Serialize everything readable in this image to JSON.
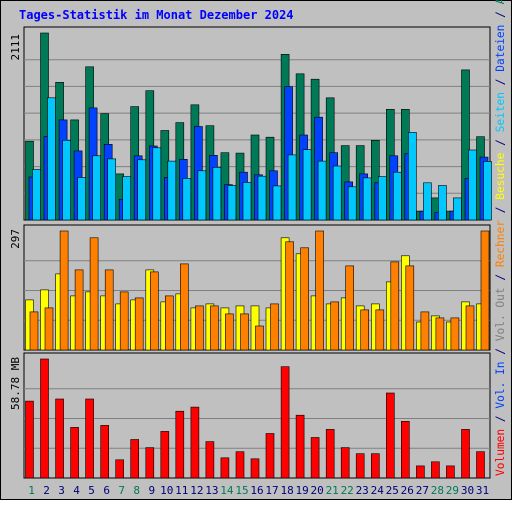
{
  "chart_data": [
    {
      "type": "bar",
      "panel": "top",
      "title": "Tages-Statistik im Monat Dezember 2024",
      "categories": [
        "1",
        "2",
        "3",
        "4",
        "5",
        "6",
        "7",
        "8",
        "9",
        "10",
        "11",
        "12",
        "13",
        "14",
        "15",
        "16",
        "17",
        "18",
        "19",
        "20",
        "21",
        "22",
        "23",
        "24",
        "25",
        "26",
        "27",
        "28",
        "29",
        "30",
        "31"
      ],
      "weekend_days": [
        "1",
        "7",
        "8",
        "14",
        "15",
        "21",
        "22",
        "28",
        "29"
      ],
      "ymax_label": "2111",
      "ylim": [
        0,
        2111
      ],
      "series": [
        {
          "name": "Anfragen",
          "color": "#007957",
          "values": [
            890,
            2111,
            1555,
            1130,
            1730,
            1200,
            520,
            1280,
            1460,
            1010,
            1100,
            1300,
            1065,
            760,
            755,
            960,
            935,
            1870,
            1650,
            1590,
            1380,
            840,
            840,
            900,
            1250,
            1250,
            100,
            250,
            100,
            1695,
            940
          ]
        },
        {
          "name": "Dateien",
          "color": "#0042ff",
          "values": [
            485,
            945,
            1130,
            780,
            1265,
            855,
            235,
            725,
            835,
            480,
            685,
            1055,
            730,
            400,
            540,
            510,
            555,
            1505,
            960,
            1160,
            760,
            430,
            520,
            420,
            725,
            750,
            100,
            85,
            100,
            470,
            710
          ]
        },
        {
          "name": "Seiten",
          "color": "#00c8ff",
          "values": [
            570,
            1380,
            900,
            480,
            725,
            690,
            490,
            680,
            815,
            665,
            470,
            555,
            595,
            390,
            425,
            495,
            385,
            735,
            795,
            665,
            610,
            375,
            475,
            490,
            540,
            990,
            420,
            390,
            250,
            790,
            660
          ]
        }
      ]
    },
    {
      "type": "bar",
      "panel": "middle",
      "categories": [
        "1",
        "2",
        "3",
        "4",
        "5",
        "6",
        "7",
        "8",
        "9",
        "10",
        "11",
        "12",
        "13",
        "14",
        "15",
        "16",
        "17",
        "18",
        "19",
        "20",
        "21",
        "22",
        "23",
        "24",
        "25",
        "26",
        "27",
        "28",
        "29",
        "30",
        "31"
      ],
      "ymax_label": "297",
      "ylim": [
        0,
        297
      ],
      "series": [
        {
          "name": "Besuche",
          "color": "#ffff00",
          "values": [
            125,
            150,
            190,
            135,
            145,
            135,
            115,
            125,
            200,
            120,
            140,
            105,
            115,
            105,
            110,
            110,
            105,
            280,
            240,
            135,
            115,
            130,
            110,
            115,
            170,
            235,
            70,
            85,
            70,
            120,
            115
          ]
        },
        {
          "name": "Rechner",
          "color": "#ff8000",
          "values": [
            95,
            105,
            297,
            200,
            280,
            200,
            145,
            130,
            195,
            135,
            215,
            110,
            110,
            90,
            90,
            60,
            115,
            270,
            255,
            297,
            120,
            210,
            100,
            100,
            220,
            210,
            95,
            80,
            80,
            110,
            297
          ]
        }
      ]
    },
    {
      "type": "bar",
      "panel": "bottom",
      "categories": [
        "1",
        "2",
        "3",
        "4",
        "5",
        "6",
        "7",
        "8",
        "9",
        "10",
        "11",
        "12",
        "13",
        "14",
        "15",
        "16",
        "17",
        "18",
        "19",
        "20",
        "21",
        "22",
        "23",
        "24",
        "25",
        "26",
        "27",
        "28",
        "29",
        "30",
        "31"
      ],
      "ymax_label": "58.78 MB",
      "ylim": [
        0,
        58.78
      ],
      "series": [
        {
          "name": "Volumen",
          "color": "#ff0000",
          "values": [
            38,
            58.78,
            39,
            25,
            39,
            26,
            9,
            19,
            15,
            23,
            33,
            35,
            18,
            10,
            13,
            9.5,
            22,
            55,
            31,
            20,
            24,
            15,
            12,
            12,
            42,
            28,
            6,
            8,
            6,
            24,
            13
          ]
        }
      ]
    }
  ],
  "right_label": [
    {
      "text": "Volumen",
      "color": "#ff0000"
    },
    {
      "text": " / ",
      "color": "#00007a"
    },
    {
      "text": "Vol. In",
      "color": "#0042ff"
    },
    {
      "text": " / ",
      "color": "#00007a"
    },
    {
      "text": "Vol. Out",
      "color": "#808080"
    },
    {
      "text": " / ",
      "color": "#00007a"
    },
    {
      "text": "Rechner",
      "color": "#ff8000"
    },
    {
      "text": " / ",
      "color": "#00007a"
    },
    {
      "text": "Besuche",
      "color": "#ffff00"
    },
    {
      "text": " / ",
      "color": "#00007a"
    },
    {
      "text": "Seiten",
      "color": "#00c8ff"
    },
    {
      "text": " / ",
      "color": "#00007a"
    },
    {
      "text": "Dateien",
      "color": "#0042ff"
    },
    {
      "text": " / ",
      "color": "#00007a"
    },
    {
      "text": "Anfragen",
      "color": "#007957"
    }
  ],
  "colors": {
    "background": "#c0c0c0",
    "title": "#0000ff",
    "weekday_label": "#00007a",
    "weekend_label": "#007957",
    "grid": "#808080"
  }
}
